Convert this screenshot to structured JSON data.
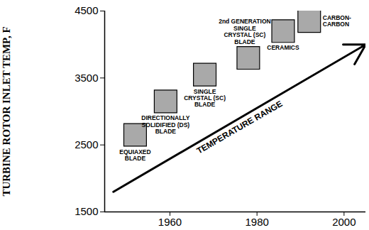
{
  "chart_data": {
    "type": "scatter",
    "ylabel": "TURBINE ROTOR INLET TEMP, F",
    "xlim": [
      1945,
      2005
    ],
    "xticks": [
      1960,
      1980,
      2000
    ],
    "ylim": [
      1500,
      4500
    ],
    "yticks": [
      1500,
      2500,
      3500,
      4500
    ],
    "grid": false,
    "marker": "square",
    "color": "#a9a9a9",
    "categories": [
      "EQUIAXED\nBLADE",
      "DIRECTIONALLY\nSOLIDIFIED (DS)\nBLADE",
      "SINGLE\nCRYSTAL (SC)\nBLADE",
      "2nd GENERATION\nSINGLE\nCRYSTAL (SC)\nBLADE",
      "CERAMICS",
      "CARBON-\nCARBON"
    ],
    "x": [
      1952,
      1959,
      1968,
      1978,
      1986,
      1992
    ],
    "values": [
      2650,
      3150,
      3550,
      3800,
      4200,
      4350
    ],
    "annotations": [
      {
        "text": "TEMPERATURE RANGE",
        "x": [
          1947,
          2005
        ],
        "y": [
          1800,
          4000
        ]
      }
    ]
  }
}
